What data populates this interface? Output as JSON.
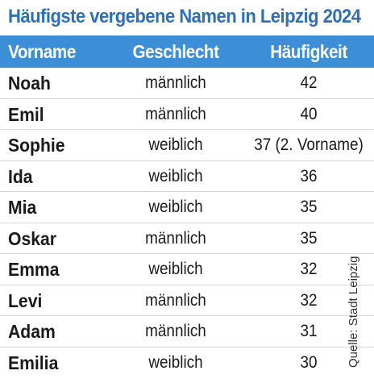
{
  "title": "Häufigste vergebene Namen in Leipzig 2024",
  "source": "Quelle: Stadt Leipzig",
  "colors": {
    "title": "#2f6fb5",
    "header_bg": "#3c8fd6",
    "header_text": "#ffffff"
  },
  "chart_data": {
    "type": "table",
    "title": "Häufigste vergebene Namen in Leipzig 2024",
    "columns": [
      "Vorname",
      "Geschlecht",
      "Häufigkeit"
    ],
    "rows": [
      {
        "name": "Noah",
        "gender": "männlich",
        "count": "42"
      },
      {
        "name": "Emil",
        "gender": "männlich",
        "count": "40"
      },
      {
        "name": "Sophie",
        "gender": "weiblich",
        "count": "37 (2. Vorname)"
      },
      {
        "name": "Ida",
        "gender": "weiblich",
        "count": "36"
      },
      {
        "name": "Mia",
        "gender": "weiblich",
        "count": "35"
      },
      {
        "name": "Oskar",
        "gender": "männlich",
        "count": "35"
      },
      {
        "name": "Emma",
        "gender": "weiblich",
        "count": "32"
      },
      {
        "name": "Levi",
        "gender": "männlich",
        "count": "32"
      },
      {
        "name": "Adam",
        "gender": "männlich",
        "count": "31"
      },
      {
        "name": "Emilia",
        "gender": "weiblich",
        "count": "30"
      }
    ],
    "source": "Quelle: Stadt Leipzig"
  }
}
